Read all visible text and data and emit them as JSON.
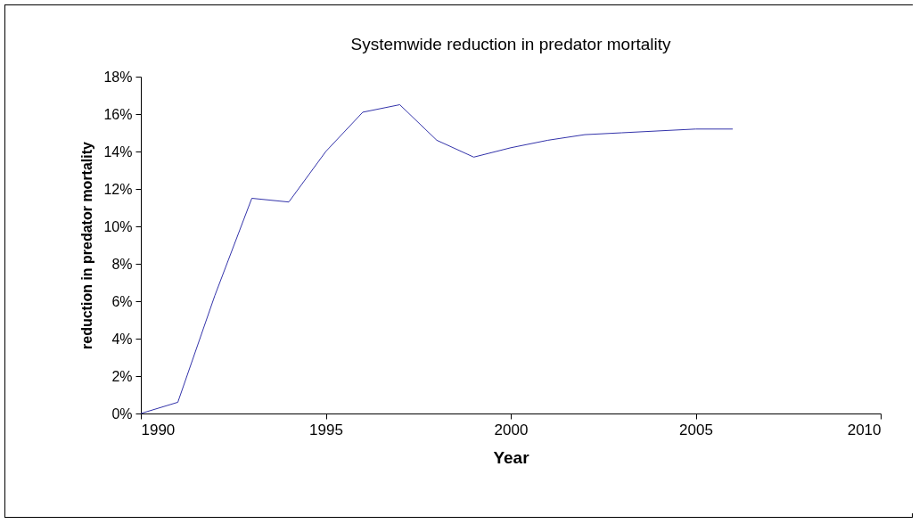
{
  "chart_data": {
    "type": "line",
    "title": "Systemwide reduction in predator mortality",
    "xlabel": "Year",
    "ylabel": "reduction in predator mortality",
    "x": [
      1990,
      1991,
      1992,
      1993,
      1994,
      1995,
      1996,
      1997,
      1998,
      1999,
      2000,
      2001,
      2002,
      2003,
      2004,
      2005,
      2006
    ],
    "series": [
      {
        "color": "#3333aa",
        "values": [
          0,
          0.6,
          6.3,
          11.5,
          11.3,
          14.0,
          16.1,
          16.5,
          14.6,
          13.7,
          14.2,
          14.6,
          14.9,
          15.0,
          15.1,
          15.2,
          15.2
        ]
      }
    ],
    "xlim": [
      1990,
      2010
    ],
    "xticks": [
      1990,
      1995,
      2000,
      2005,
      2010
    ],
    "ylim": [
      0,
      18
    ],
    "yticks": [
      {
        "value": 0,
        "label": "0%"
      },
      {
        "value": 2,
        "label": "2%"
      },
      {
        "value": 4,
        "label": "4%"
      },
      {
        "value": 6,
        "label": "6%"
      },
      {
        "value": 8,
        "label": "8%"
      },
      {
        "value": 10,
        "label": "10%"
      },
      {
        "value": 12,
        "label": "12%"
      },
      {
        "value": 14,
        "label": "14%"
      },
      {
        "value": 16,
        "label": "16%"
      },
      {
        "value": 18,
        "label": "18%"
      }
    ]
  }
}
